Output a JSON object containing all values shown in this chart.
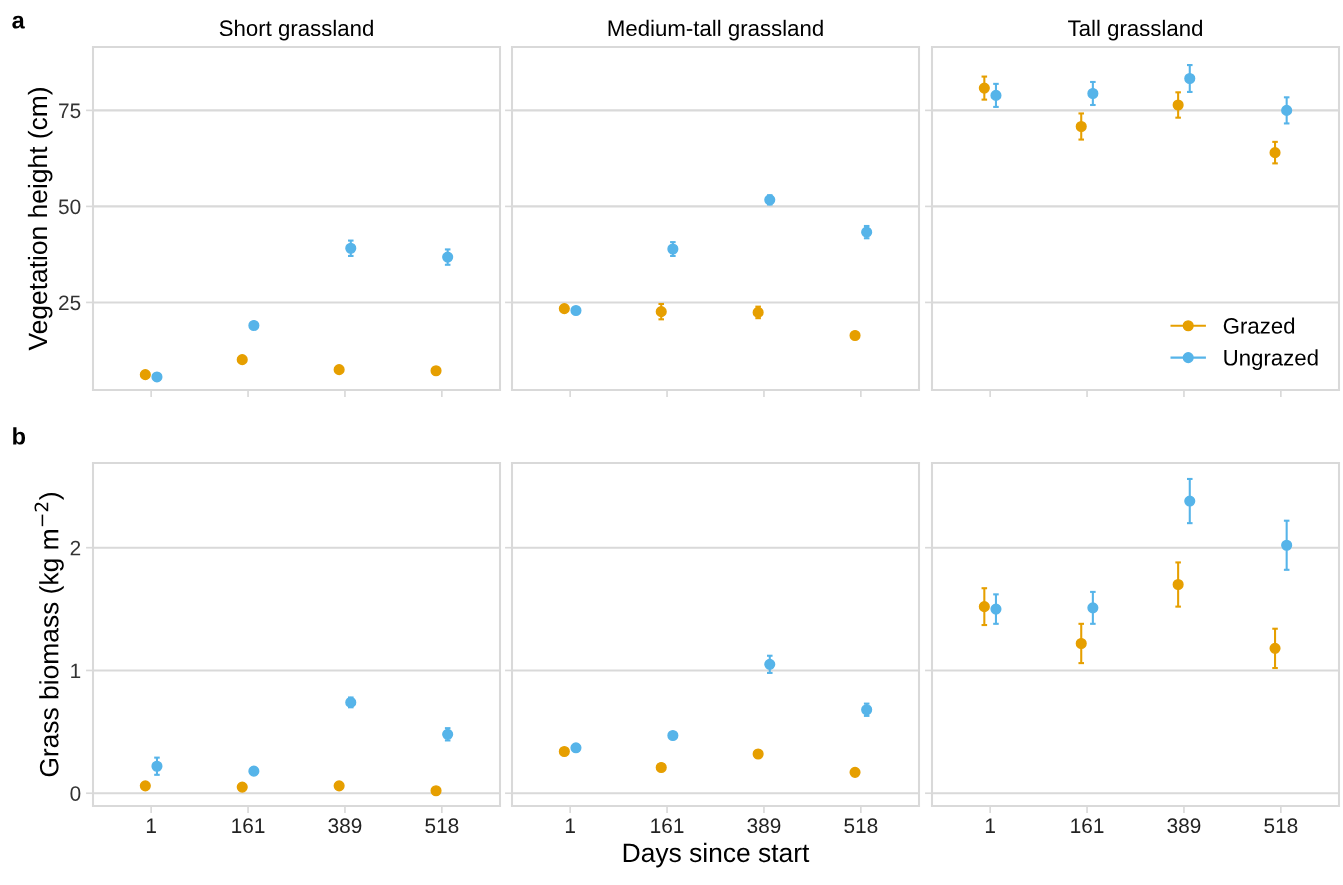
{
  "chart_data": [
    {
      "type": "scatter",
      "title": "Short grassland",
      "ylabel": "Vegetation height (cm)",
      "annotations": [
        "a"
      ],
      "categories": [
        "1",
        "161",
        "389",
        "518"
      ],
      "ylim": [
        2.2,
        91.5
      ],
      "yticks": [
        25,
        50,
        75
      ],
      "grid": "y",
      "marker": "circle",
      "tick_labels": "y",
      "series": [
        {
          "color": "#e69f00",
          "values": [
            6.2,
            10.1,
            7.5,
            7.2
          ],
          "errors": [
            null,
            null,
            null,
            null
          ]
        },
        {
          "color": "#56b4e9",
          "values": [
            5.6,
            19.0,
            39.1,
            36.8
          ],
          "errors": [
            null,
            null,
            2.0,
            2.0
          ]
        }
      ]
    },
    {
      "type": "scatter",
      "title": "Medium-tall grassland",
      "categories": [
        "1",
        "161",
        "389",
        "518"
      ],
      "ylim": [
        2.2,
        91.5
      ],
      "yticks": [
        25,
        50,
        75
      ],
      "grid": "y",
      "marker": "circle",
      "tick_labels": false,
      "series": [
        {
          "color": "#e69f00",
          "values": [
            23.4,
            22.6,
            22.4,
            16.4
          ],
          "errors": [
            null,
            2.0,
            1.5,
            null
          ]
        },
        {
          "color": "#56b4e9",
          "values": [
            22.9,
            38.9,
            51.7,
            43.3
          ],
          "errors": [
            null,
            1.8,
            1.2,
            1.6
          ]
        }
      ]
    },
    {
      "type": "scatter",
      "title": "Tall grassland",
      "categories": [
        "1",
        "161",
        "389",
        "518"
      ],
      "ylim": [
        2.2,
        91.5
      ],
      "yticks": [
        25,
        50,
        75
      ],
      "grid": "y",
      "marker": "circle",
      "tick_labels": false,
      "legend": "bottom right",
      "series": [
        {
          "name": "Grazed",
          "color": "#e69f00",
          "values": [
            80.8,
            70.8,
            76.4,
            64.0
          ],
          "errors": [
            3.0,
            3.4,
            3.3,
            2.8
          ]
        },
        {
          "name": "Ungrazed",
          "color": "#56b4e9",
          "values": [
            78.9,
            79.4,
            83.3,
            75.0
          ],
          "errors": [
            3.0,
            3.0,
            3.5,
            3.4
          ]
        }
      ]
    },
    {
      "type": "scatter",
      "ylabel": "Grass biomass (kg m$^{−2}$)",
      "annotations": [
        "b"
      ],
      "categories": [
        "1",
        "161",
        "389",
        "518"
      ],
      "ylim": [
        -0.104,
        2.69
      ],
      "yticks": [
        0,
        1,
        2
      ],
      "grid": "y",
      "marker": "circle",
      "series": [
        {
          "color": "#e69f00",
          "values": [
            0.06,
            0.05,
            0.06,
            0.02
          ],
          "errors": [
            null,
            null,
            null,
            null
          ]
        },
        {
          "color": "#56b4e9",
          "values": [
            0.22,
            0.18,
            0.74,
            0.48
          ],
          "errors": [
            0.07,
            null,
            0.04,
            0.05
          ]
        }
      ]
    },
    {
      "type": "scatter",
      "xlabel": "Days since start",
      "categories": [
        "1",
        "161",
        "389",
        "518"
      ],
      "ylim": [
        -0.104,
        2.69
      ],
      "yticks": [
        0,
        1,
        2
      ],
      "grid": "y",
      "marker": "circle",
      "tick_labels": "x",
      "series": [
        {
          "color": "#e69f00",
          "values": [
            0.34,
            0.21,
            0.32,
            0.17
          ],
          "errors": [
            null,
            null,
            null,
            null
          ]
        },
        {
          "color": "#56b4e9",
          "values": [
            0.37,
            0.47,
            1.05,
            0.68
          ],
          "errors": [
            null,
            null,
            0.07,
            0.05
          ]
        }
      ]
    },
    {
      "type": "scatter",
      "categories": [
        "1",
        "161",
        "389",
        "518"
      ],
      "ylim": [
        -0.104,
        2.69
      ],
      "yticks": [
        0,
        1,
        2
      ],
      "grid": "y",
      "marker": "circle",
      "tick_labels": "x",
      "series": [
        {
          "color": "#e69f00",
          "values": [
            1.52,
            1.22,
            1.7,
            1.18
          ],
          "errors": [
            0.15,
            0.16,
            0.18,
            0.16
          ]
        },
        {
          "color": "#56b4e9",
          "values": [
            1.5,
            1.51,
            2.38,
            2.02
          ],
          "errors": [
            0.12,
            0.13,
            0.18,
            0.2
          ]
        }
      ]
    }
  ]
}
